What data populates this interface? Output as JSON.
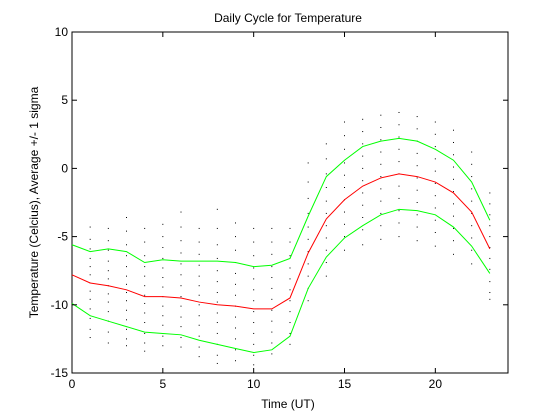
{
  "chart_data": {
    "type": "line",
    "title": "Daily Cycle for Temperature",
    "xlabel": "Time (UT)",
    "ylabel": "Temperature (Celcius), Average +/- 1 sigma",
    "xlim": [
      0,
      24
    ],
    "ylim": [
      -15,
      10
    ],
    "xticks": [
      0,
      5,
      10,
      15,
      20
    ],
    "yticks": [
      -15,
      -10,
      -5,
      0,
      5,
      10
    ],
    "grid": false,
    "legend": "none",
    "x": [
      0,
      1,
      2,
      3,
      4,
      5,
      6,
      7,
      8,
      9,
      10,
      11,
      12,
      13,
      14,
      15,
      16,
      17,
      18,
      19,
      20,
      21,
      22,
      23
    ],
    "series": [
      {
        "role": "upper",
        "color": "#00ff00",
        "values": [
          -5.6,
          -6.1,
          -5.9,
          -6.1,
          -6.9,
          -6.7,
          -6.8,
          -6.8,
          -6.8,
          -6.9,
          -7.2,
          -7.1,
          -6.6,
          -3.5,
          -0.6,
          0.6,
          1.6,
          2.0,
          2.2,
          2.0,
          1.4,
          0.6,
          -1.0,
          -3.8
        ]
      },
      {
        "role": "mean",
        "color": "#ff0000",
        "values": [
          -7.8,
          -8.4,
          -8.6,
          -8.9,
          -9.4,
          -9.4,
          -9.5,
          -9.8,
          -10.0,
          -10.1,
          -10.3,
          -10.3,
          -9.5,
          -6.2,
          -3.7,
          -2.3,
          -1.3,
          -0.7,
          -0.4,
          -0.6,
          -1.0,
          -1.8,
          -3.2,
          -5.9
        ]
      },
      {
        "role": "lower",
        "color": "#00ff00",
        "values": [
          -9.9,
          -10.8,
          -11.2,
          -11.6,
          -12.0,
          -12.1,
          -12.2,
          -12.6,
          -12.9,
          -13.2,
          -13.5,
          -13.3,
          -12.3,
          -8.8,
          -6.5,
          -5.1,
          -4.2,
          -3.4,
          -3.0,
          -3.1,
          -3.4,
          -4.3,
          -5.7,
          -7.7
        ]
      }
    ],
    "scatter_color": "#000000",
    "scatter": [
      {
        "x": 0,
        "y": [
          -5.0,
          -5.6,
          -6.3,
          -6.9,
          -7.4,
          -7.8,
          -8.2,
          -8.7,
          -9.2,
          -9.9,
          -10.6
        ]
      },
      {
        "x": 1,
        "y": [
          -4.3,
          -5.2,
          -5.9,
          -6.6,
          -7.2,
          -7.8,
          -8.4,
          -9.0,
          -9.6,
          -10.3,
          -11.0,
          -11.8,
          -12.4
        ]
      },
      {
        "x": 2,
        "y": [
          -4.4,
          -5.3,
          -6.0,
          -6.8,
          -7.5,
          -8.1,
          -8.6,
          -9.2,
          -9.8,
          -10.5,
          -11.2,
          -12.0,
          -12.8
        ]
      },
      {
        "x": 3,
        "y": [
          -3.6,
          -4.6,
          -5.6,
          -6.4,
          -7.2,
          -7.9,
          -8.5,
          -9.1,
          -9.7,
          -10.4,
          -11.1,
          -11.8,
          -12.5,
          -13.0
        ]
      },
      {
        "x": 4,
        "y": [
          -4.4,
          -5.4,
          -6.4,
          -7.2,
          -7.9,
          -8.6,
          -9.3,
          -9.9,
          -10.6,
          -11.3,
          -12.1,
          -12.8,
          -13.4
        ]
      },
      {
        "x": 5,
        "y": [
          -4.1,
          -5.0,
          -5.8,
          -6.6,
          -7.3,
          -8.0,
          -8.7,
          -9.4,
          -10.1,
          -10.8,
          -11.5,
          -12.3,
          -13.0
        ]
      },
      {
        "x": 6,
        "y": [
          -3.2,
          -4.3,
          -5.3,
          -6.2,
          -7.0,
          -7.8,
          -8.6,
          -9.4,
          -10.1,
          -10.9,
          -11.6,
          -12.4,
          -13.1
        ]
      },
      {
        "x": 7,
        "y": [
          -4.4,
          -5.4,
          -6.3,
          -7.1,
          -7.9,
          -8.6,
          -9.3,
          -10.0,
          -10.8,
          -11.5,
          -12.3,
          -13.1,
          -13.8
        ]
      },
      {
        "x": 8,
        "y": [
          -3.0,
          -4.4,
          -5.6,
          -6.6,
          -7.5,
          -8.3,
          -9.1,
          -9.8,
          -10.6,
          -11.3,
          -12.1,
          -12.9,
          -13.7,
          -14.3
        ]
      },
      {
        "x": 9,
        "y": [
          -4.0,
          -5.0,
          -6.0,
          -6.9,
          -7.7,
          -8.5,
          -9.3,
          -10.1,
          -10.9,
          -11.7,
          -12.5,
          -13.3,
          -14.1
        ]
      },
      {
        "x": 10,
        "y": [
          -4.4,
          -5.4,
          -6.4,
          -7.3,
          -8.1,
          -8.9,
          -9.7,
          -10.5,
          -11.3,
          -12.1,
          -12.9,
          -13.7,
          -14.4
        ]
      },
      {
        "x": 11,
        "y": [
          -4.4,
          -5.4,
          -6.3,
          -7.2,
          -8.0,
          -8.8,
          -9.6,
          -10.4,
          -11.2,
          -12.0,
          -12.8,
          -13.6
        ]
      },
      {
        "x": 12,
        "y": [
          -4.4,
          -5.4,
          -6.4,
          -7.3,
          -8.1,
          -8.9,
          -9.7,
          -10.5,
          -11.3,
          -12.1,
          -12.9
        ]
      },
      {
        "x": 13,
        "y": [
          0.4,
          -1.0,
          -2.2,
          -3.3,
          -4.3,
          -5.2,
          -6.1,
          -7.0,
          -7.9,
          -8.8,
          -9.7
        ]
      },
      {
        "x": 14,
        "y": [
          1.8,
          0.7,
          -0.4,
          -1.4,
          -2.4,
          -3.3,
          -4.2,
          -5.1,
          -6.0,
          -6.9,
          -7.9
        ]
      },
      {
        "x": 15,
        "y": [
          3.4,
          2.4,
          1.4,
          0.4,
          -0.5,
          -1.4,
          -2.3,
          -3.2,
          -4.1,
          -5.0,
          -6.0
        ]
      },
      {
        "x": 16,
        "y": [
          3.6,
          2.7,
          1.8,
          0.9,
          0.0,
          -0.9,
          -1.8,
          -2.7,
          -3.6,
          -4.5,
          -5.6
        ]
      },
      {
        "x": 17,
        "y": [
          3.9,
          3.0,
          2.1,
          1.2,
          0.3,
          -0.6,
          -1.5,
          -2.4,
          -3.3,
          -4.2,
          -5.2
        ]
      },
      {
        "x": 18,
        "y": [
          4.1,
          3.2,
          2.3,
          1.4,
          0.5,
          -0.4,
          -1.3,
          -2.2,
          -3.1,
          -4.0,
          -5.0
        ]
      },
      {
        "x": 19,
        "y": [
          3.8,
          2.9,
          2.0,
          1.1,
          0.2,
          -0.7,
          -1.6,
          -2.5,
          -3.4,
          -4.3,
          -5.3
        ]
      },
      {
        "x": 20,
        "y": [
          3.4,
          2.5,
          1.6,
          0.7,
          -0.2,
          -1.1,
          -2.0,
          -2.9,
          -3.8,
          -4.7,
          -5.7
        ]
      },
      {
        "x": 21,
        "y": [
          2.8,
          1.9,
          1.0,
          0.1,
          -0.8,
          -1.7,
          -2.6,
          -3.5,
          -4.4,
          -5.3,
          -6.3
        ]
      },
      {
        "x": 22,
        "y": [
          1.2,
          0.3,
          -0.6,
          -1.5,
          -2.4,
          -3.3,
          -4.2,
          -5.1,
          -6.0,
          -7.0
        ]
      },
      {
        "x": 23,
        "y": [
          -1.8,
          -2.6,
          -3.4,
          -4.2,
          -5.0,
          -5.8,
          -6.6,
          -7.4,
          -8.3,
          -9.1,
          -9.6
        ]
      }
    ]
  }
}
